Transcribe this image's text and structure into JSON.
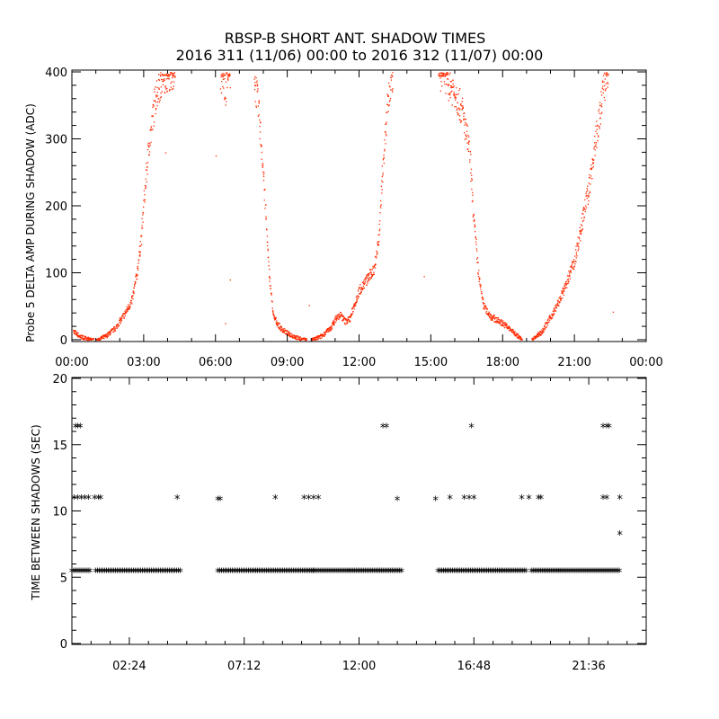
{
  "title_line1": "RBSP-B SHORT ANT. SHADOW TIMES",
  "title_line2": "2016 311 (11/06) 00:00 to 2016 312 (11/07) 00:00",
  "chart_data": [
    {
      "type": "scatter",
      "name": "shadow-amplitude",
      "ylabel": "Probe 5 DELTA AMP DURING SHADOW (ADC)",
      "xlabel": "",
      "xlim": [
        0,
        24
      ],
      "ylim": [
        0,
        400
      ],
      "x_unit": "hours",
      "xticks": [
        0,
        3,
        6,
        9,
        12,
        15,
        18,
        21,
        24
      ],
      "xtick_labels": [
        "00:00",
        "03:00",
        "06:00",
        "09:00",
        "12:00",
        "15:00",
        "18:00",
        "21:00",
        "00:00"
      ],
      "yticks": [
        0,
        100,
        200,
        300,
        400
      ],
      "ytick_labels": [
        "0",
        "100",
        "200",
        "300",
        "400"
      ],
      "marker_color": "#ff2a00",
      "segments": [
        {
          "x": [
            0.0,
            0.3,
            0.6,
            0.9
          ],
          "y": [
            15,
            6,
            2,
            0
          ]
        },
        {
          "x": [
            1.0,
            1.4,
            1.8,
            2.2,
            2.5,
            2.7,
            2.9,
            3.0,
            3.2,
            3.5,
            3.8,
            4.1,
            4.3
          ],
          "y": [
            0,
            6,
            18,
            40,
            60,
            100,
            160,
            210,
            290,
            370,
            395,
            400,
            400
          ]
        },
        {
          "x": [
            6.2,
            6.4,
            6.6
          ],
          "y": [
            395,
            375,
            400
          ]
        },
        {
          "x": [
            7.6,
            7.8,
            8.0,
            8.2,
            8.4,
            8.7,
            9.0,
            9.5,
            9.8
          ],
          "y": [
            395,
            340,
            240,
            110,
            35,
            18,
            10,
            2,
            0
          ]
        },
        {
          "x": [
            10.0,
            10.4,
            10.8,
            11.0,
            11.2,
            11.4,
            11.6,
            11.8,
            12.0,
            12.4,
            12.6,
            12.8,
            13.0,
            13.2,
            13.4
          ],
          "y": [
            0,
            6,
            18,
            32,
            38,
            28,
            32,
            55,
            75,
            95,
            105,
            150,
            270,
            360,
            400
          ]
        },
        {
          "x": [
            15.3,
            15.6,
            16.0,
            16.3,
            16.6,
            16.8,
            17.0,
            17.2,
            17.5,
            18.0,
            18.5,
            18.8
          ],
          "y": [
            400,
            390,
            370,
            340,
            280,
            170,
            90,
            50,
            35,
            25,
            10,
            0
          ]
        },
        {
          "x": [
            19.2,
            19.6,
            20.0,
            20.3,
            20.6,
            21.0,
            21.3,
            21.6,
            21.8,
            22.0,
            22.2,
            22.4
          ],
          "y": [
            0,
            12,
            35,
            55,
            80,
            120,
            175,
            230,
            280,
            330,
            380,
            400
          ]
        }
      ],
      "isolated_points": [
        {
          "x": 6.0,
          "y": 275
        },
        {
          "x": 6.4,
          "y": 25
        },
        {
          "x": 6.6,
          "y": 90
        },
        {
          "x": 9.9,
          "y": 52
        },
        {
          "x": 14.7,
          "y": 95
        },
        {
          "x": 22.6,
          "y": 42
        },
        {
          "x": 3.9,
          "y": 280
        }
      ]
    },
    {
      "type": "scatter",
      "name": "time-between-shadows",
      "ylabel": "TIME BETWEEN SHADOWS (SEC)",
      "xlabel": "",
      "xlim": [
        0,
        24
      ],
      "ylim": [
        0,
        20
      ],
      "x_unit": "hours",
      "xticks": [
        2.4,
        7.2,
        12.0,
        16.8,
        21.6
      ],
      "xtick_labels": [
        "02:24",
        "07:12",
        "12:00",
        "16:48",
        "21:36"
      ],
      "yticks": [
        0,
        5,
        10,
        15,
        20
      ],
      "ytick_labels": [
        "0",
        "5",
        "10",
        "15",
        "20"
      ],
      "marker": "*",
      "marker_color": "#000000",
      "bands": [
        {
          "x_start": 0.0,
          "x_end": 0.8,
          "y": 5.4
        },
        {
          "x_start": 1.0,
          "x_end": 4.6,
          "y": 5.4
        },
        {
          "x_start": 6.1,
          "x_end": 10.1,
          "y": 5.4
        },
        {
          "x_start": 10.1,
          "x_end": 13.8,
          "y": 5.4
        },
        {
          "x_start": 15.3,
          "x_end": 19.0,
          "y": 5.4
        },
        {
          "x_start": 19.2,
          "x_end": 22.9,
          "y": 5.4
        }
      ],
      "points": [
        {
          "x": 0.15,
          "y": 16.3
        },
        {
          "x": 0.25,
          "y": 16.3
        },
        {
          "x": 0.35,
          "y": 16.3
        },
        {
          "x": 0.1,
          "y": 10.9
        },
        {
          "x": 0.25,
          "y": 10.9
        },
        {
          "x": 0.4,
          "y": 10.9
        },
        {
          "x": 0.55,
          "y": 10.9
        },
        {
          "x": 0.7,
          "y": 10.9
        },
        {
          "x": 0.95,
          "y": 10.9
        },
        {
          "x": 1.1,
          "y": 10.9
        },
        {
          "x": 1.2,
          "y": 10.9
        },
        {
          "x": 4.4,
          "y": 10.9
        },
        {
          "x": 6.1,
          "y": 10.8
        },
        {
          "x": 6.2,
          "y": 10.8
        },
        {
          "x": 8.5,
          "y": 10.9
        },
        {
          "x": 9.7,
          "y": 10.9
        },
        {
          "x": 9.9,
          "y": 10.9
        },
        {
          "x": 10.1,
          "y": 10.9
        },
        {
          "x": 10.3,
          "y": 10.9
        },
        {
          "x": 13.0,
          "y": 16.3
        },
        {
          "x": 13.15,
          "y": 16.3
        },
        {
          "x": 13.6,
          "y": 10.8
        },
        {
          "x": 15.2,
          "y": 10.8
        },
        {
          "x": 15.8,
          "y": 10.9
        },
        {
          "x": 16.4,
          "y": 10.9
        },
        {
          "x": 16.6,
          "y": 10.9
        },
        {
          "x": 16.8,
          "y": 10.9
        },
        {
          "x": 16.7,
          "y": 16.3
        },
        {
          "x": 18.8,
          "y": 10.9
        },
        {
          "x": 19.1,
          "y": 10.9
        },
        {
          "x": 19.5,
          "y": 10.9
        },
        {
          "x": 19.6,
          "y": 10.9
        },
        {
          "x": 22.2,
          "y": 16.3
        },
        {
          "x": 22.35,
          "y": 16.3
        },
        {
          "x": 22.45,
          "y": 16.3
        },
        {
          "x": 22.2,
          "y": 10.9
        },
        {
          "x": 22.35,
          "y": 10.9
        },
        {
          "x": 22.9,
          "y": 10.9
        },
        {
          "x": 22.9,
          "y": 8.2
        }
      ]
    }
  ]
}
